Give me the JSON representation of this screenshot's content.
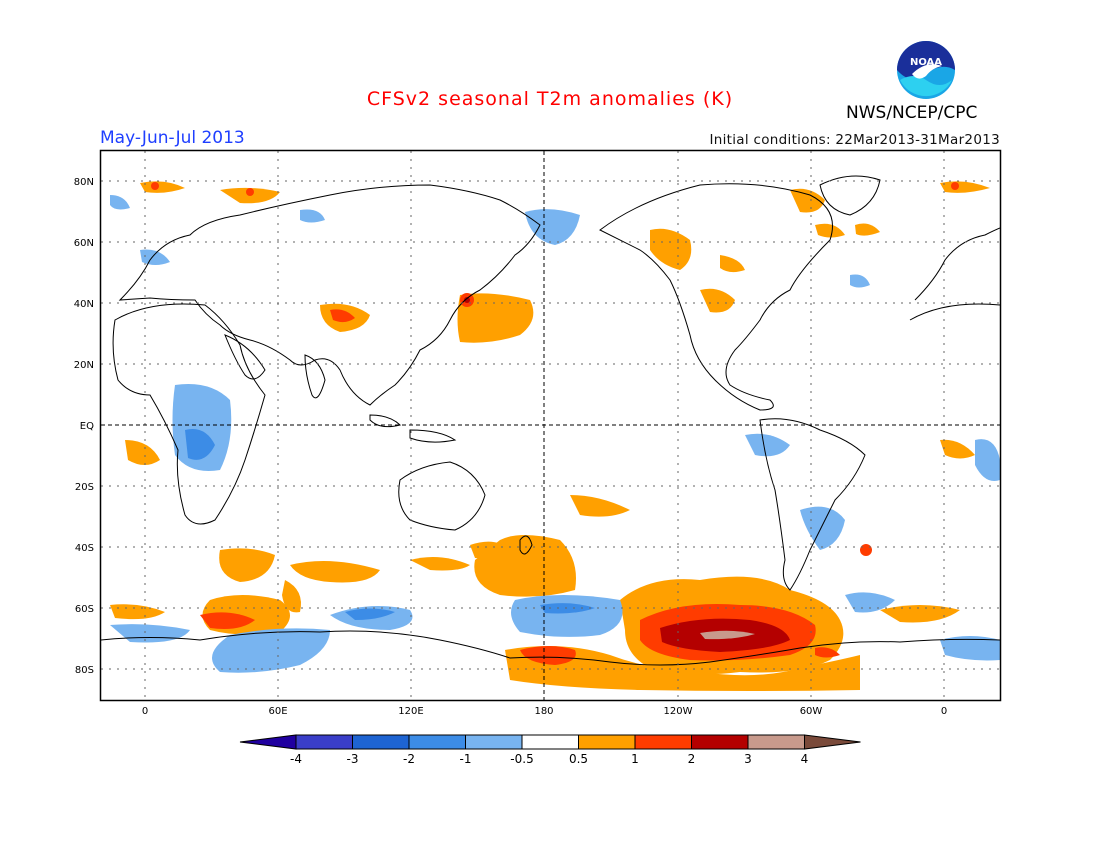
{
  "header": {
    "title": "CFSv2 seasonal T2m anomalies (K)",
    "season": "May-Jun-Jul 2013",
    "initial_conditions": "Initial conditions: 22Mar2013-31Mar2013",
    "agency": "NWS/NCEP/CPC",
    "logo_text": "NOAA"
  },
  "map": {
    "projection": "cylindrical equidistant, centered on 180",
    "lat_ticks": [
      "80N",
      "60N",
      "40N",
      "20N",
      "EQ",
      "20S",
      "40S",
      "60S",
      "80S"
    ],
    "lon_ticks": [
      "0",
      "60E",
      "120E",
      "180",
      "120W",
      "60W",
      "0"
    ]
  },
  "colorbar": {
    "labels": [
      "-4",
      "-3",
      "-2",
      "-1",
      "-0.5",
      "0.5",
      "1",
      "2",
      "3",
      "4"
    ],
    "colors": [
      "#2000a0",
      "#3a3ec8",
      "#1e64d2",
      "#3c8ce6",
      "#78b4f0",
      "#ffffff",
      "#ffa000",
      "#ff3c00",
      "#b40000",
      "#c89a8c",
      "#7a4a3a"
    ]
  }
}
